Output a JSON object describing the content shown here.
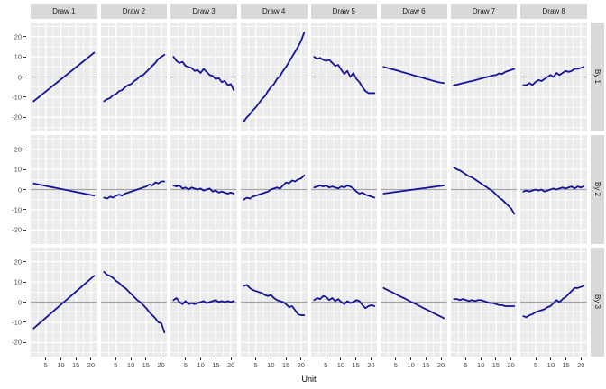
{
  "chart_data": {
    "type": "line",
    "title": "",
    "xlabel": "Unit",
    "facet_cols": [
      "Draw 1",
      "Draw 2",
      "Draw 3",
      "Draw 4",
      "Draw 5",
      "Draw 6",
      "Draw 7",
      "Draw 8"
    ],
    "facet_rows": [
      "By 1",
      "By 2",
      "By 3"
    ],
    "x": [
      1,
      2,
      3,
      4,
      5,
      6,
      7,
      8,
      9,
      10,
      11,
      12,
      13,
      14,
      15,
      16,
      17,
      18,
      19,
      20,
      21
    ],
    "x_ticks": [
      5,
      10,
      15,
      20
    ],
    "y_ticks": [
      20,
      10,
      0,
      -10,
      -20
    ],
    "x_domain": [
      0,
      22
    ],
    "y_domain": [
      -27,
      27
    ],
    "reference_line_y": 0,
    "legend": "none",
    "grid": "white major and minor gridlines on grey panels",
    "colors": {
      "line": "#14149B",
      "panel_bg": "#EBEBEB",
      "strip_bg": "#D9D9D9",
      "grid_line": "#FFFFFF",
      "zero_line": "#A3A3A3",
      "axis_text": "#4D4D4D",
      "strip_text": "#1A1A1A"
    },
    "panels": [
      {
        "row": "By 1",
        "col": "Draw 1",
        "y": [
          -12,
          -10.8,
          -9.6,
          -8.4,
          -7.2,
          -6,
          -4.8,
          -3.6,
          -2.4,
          -1.2,
          0,
          1.2,
          2.4,
          3.6,
          4.8,
          6,
          7.2,
          8.4,
          9.6,
          10.8,
          12
        ]
      },
      {
        "row": "By 1",
        "col": "Draw 2",
        "y": [
          -12,
          -11,
          -10.5,
          -9,
          -8.5,
          -7,
          -6.5,
          -5,
          -4,
          -3.5,
          -2,
          -1,
          0.5,
          1,
          2.5,
          4,
          5.5,
          7,
          9,
          10,
          11
        ]
      },
      {
        "row": "By 1",
        "col": "Draw 3",
        "y": [
          10,
          8,
          7,
          7.5,
          5.5,
          5,
          4.5,
          3,
          3.5,
          2,
          4,
          2.5,
          1,
          0.5,
          -1,
          -0.5,
          -2.5,
          -2,
          -4,
          -3.5,
          -6.5
        ]
      },
      {
        "row": "By 1",
        "col": "Draw 4",
        "y": [
          -22,
          -20,
          -18.5,
          -16.5,
          -15,
          -13,
          -11,
          -9.5,
          -7,
          -5,
          -3.5,
          -1,
          0.5,
          3,
          5,
          7.5,
          10,
          12.5,
          15,
          18,
          22
        ]
      },
      {
        "row": "By 1",
        "col": "Draw 5",
        "y": [
          10,
          9,
          9.5,
          8.5,
          8,
          8.5,
          7,
          5.5,
          6,
          3.5,
          1.5,
          3,
          0,
          2,
          -1,
          -2.5,
          -5,
          -7,
          -8,
          -8,
          -8
        ]
      },
      {
        "row": "By 1",
        "col": "Draw 6",
        "y": [
          5,
          4.6,
          4.2,
          3.8,
          3.4,
          3,
          2.5,
          2.1,
          1.7,
          1.3,
          0.8,
          0.4,
          0,
          -0.4,
          -0.9,
          -1.3,
          -1.7,
          -2.1,
          -2.5,
          -2.8,
          -3
        ]
      },
      {
        "row": "By 1",
        "col": "Draw 7",
        "y": [
          -4,
          -3.8,
          -3.4,
          -3,
          -2.7,
          -2.3,
          -2,
          -1.6,
          -1.2,
          -0.8,
          -0.4,
          0,
          0.4,
          0.8,
          1,
          1.8,
          1.5,
          2.5,
          3,
          3.5,
          4
        ]
      },
      {
        "row": "By 1",
        "col": "Draw 8",
        "y": [
          -4,
          -4,
          -3,
          -4,
          -2.5,
          -1.5,
          -2,
          -1,
          0,
          1,
          0,
          2,
          1,
          2,
          3,
          2.5,
          3,
          4,
          4,
          4.5,
          5
        ]
      },
      {
        "row": "By 2",
        "col": "Draw 1",
        "y": [
          3,
          2.7,
          2.4,
          2.1,
          1.8,
          1.5,
          1.2,
          0.9,
          0.6,
          0.3,
          0,
          -0.3,
          -0.6,
          -0.9,
          -1.2,
          -1.5,
          -1.8,
          -2.1,
          -2.4,
          -2.7,
          -3
        ]
      },
      {
        "row": "By 2",
        "col": "Draw 2",
        "y": [
          -4,
          -4.5,
          -3.5,
          -4,
          -3,
          -2.5,
          -3,
          -2,
          -1.5,
          -1,
          -0.5,
          0,
          0.5,
          1,
          1.5,
          2.5,
          2,
          3.5,
          3,
          4,
          4
        ]
      },
      {
        "row": "By 2",
        "col": "Draw 3",
        "y": [
          2,
          1.5,
          2,
          0.5,
          1,
          0,
          1,
          0.5,
          0,
          0.5,
          -0.5,
          0,
          0.5,
          -1,
          -0.5,
          -1.5,
          -1,
          -1.5,
          -2,
          -1.5,
          -2
        ]
      },
      {
        "row": "By 2",
        "col": "Draw 4",
        "y": [
          -5,
          -4,
          -4.5,
          -3.5,
          -3,
          -2.5,
          -2,
          -1.5,
          -1,
          0,
          0.5,
          1,
          0.5,
          2,
          3.5,
          3,
          4.5,
          4,
          5,
          5.5,
          7
        ]
      },
      {
        "row": "By 2",
        "col": "Draw 5",
        "y": [
          1,
          1.5,
          2,
          1.5,
          2,
          1,
          1.5,
          1,
          0.5,
          1.5,
          1,
          2,
          1.5,
          0.5,
          -1,
          -2,
          -1.5,
          -2.5,
          -3,
          -3.5,
          -4
        ]
      },
      {
        "row": "By 2",
        "col": "Draw 6",
        "y": [
          -2,
          -1.8,
          -1.6,
          -1.4,
          -1.2,
          -1,
          -0.8,
          -0.6,
          -0.4,
          -0.2,
          0,
          0.2,
          0.4,
          0.6,
          0.8,
          1,
          1.2,
          1.4,
          1.6,
          1.8,
          2
        ]
      },
      {
        "row": "By 2",
        "col": "Draw 7",
        "y": [
          11,
          10,
          9.5,
          8.5,
          7.5,
          6.5,
          6,
          5,
          4,
          3,
          2,
          1,
          0,
          -1,
          -2.5,
          -4,
          -5,
          -6.5,
          -8,
          -9.5,
          -12
        ]
      },
      {
        "row": "By 2",
        "col": "Draw 8",
        "y": [
          -1,
          -0.5,
          -1,
          -0.5,
          0,
          -0.5,
          0,
          -1,
          -0.5,
          0,
          0.5,
          0,
          0.5,
          1,
          0.5,
          1,
          1.5,
          0.5,
          1.5,
          1,
          1.5
        ]
      },
      {
        "row": "By 3",
        "col": "Draw 1",
        "y": [
          -13,
          -11.7,
          -10.4,
          -9.1,
          -7.8,
          -6.5,
          -5.2,
          -3.9,
          -2.6,
          -1.3,
          0,
          1.3,
          2.6,
          3.9,
          5.2,
          6.5,
          7.8,
          9.1,
          10.4,
          11.7,
          13
        ]
      },
      {
        "row": "By 3",
        "col": "Draw 2",
        "y": [
          15,
          13.5,
          13,
          12,
          10.5,
          9.5,
          8,
          7,
          5.5,
          4,
          2.5,
          1,
          0,
          -1.5,
          -3,
          -5,
          -6.5,
          -8,
          -10,
          -10.5,
          -15
        ]
      },
      {
        "row": "By 3",
        "col": "Draw 3",
        "y": [
          1,
          2,
          0,
          -1,
          0.5,
          -1,
          -0.5,
          -1,
          -0.5,
          0,
          0.5,
          -0.5,
          0,
          0.5,
          1,
          0,
          0.5,
          0,
          0.5,
          0,
          0.5
        ]
      },
      {
        "row": "By 3",
        "col": "Draw 4",
        "y": [
          8,
          8.5,
          7,
          6,
          5.5,
          5,
          4.5,
          3.5,
          3,
          3.5,
          2,
          1,
          0.5,
          0,
          -1,
          -2.5,
          -2,
          -4,
          -6,
          -6.5,
          -6.5
        ]
      },
      {
        "row": "By 3",
        "col": "Draw 5",
        "y": [
          1,
          2,
          1.5,
          3,
          2.5,
          1,
          2,
          0.5,
          1.5,
          0,
          -1,
          0.5,
          -0.5,
          0,
          1,
          0.5,
          -1.5,
          -3,
          -2,
          -1.5,
          -2
        ]
      },
      {
        "row": "By 3",
        "col": "Draw 6",
        "y": [
          7,
          6.2,
          5.5,
          4.8,
          4,
          3.2,
          2.5,
          1.8,
          1,
          0.2,
          -0.5,
          -1.2,
          -2,
          -2.8,
          -3.5,
          -4.2,
          -5,
          -5.8,
          -6.5,
          -7.2,
          -8
        ]
      },
      {
        "row": "By 3",
        "col": "Draw 7",
        "y": [
          1.5,
          1.5,
          1,
          1.5,
          1,
          0.5,
          1,
          0.5,
          1,
          1,
          0.5,
          0,
          -0.5,
          -0.5,
          -1,
          -1.5,
          -1.5,
          -2,
          -2,
          -2,
          -2
        ]
      },
      {
        "row": "By 3",
        "col": "Draw 8",
        "y": [
          -7,
          -7.5,
          -6.5,
          -6,
          -5,
          -4.5,
          -4,
          -3.5,
          -2.5,
          -2,
          -0.5,
          1,
          0,
          1.5,
          2.5,
          4,
          5.5,
          7,
          7,
          7.5,
          8
        ]
      }
    ]
  }
}
